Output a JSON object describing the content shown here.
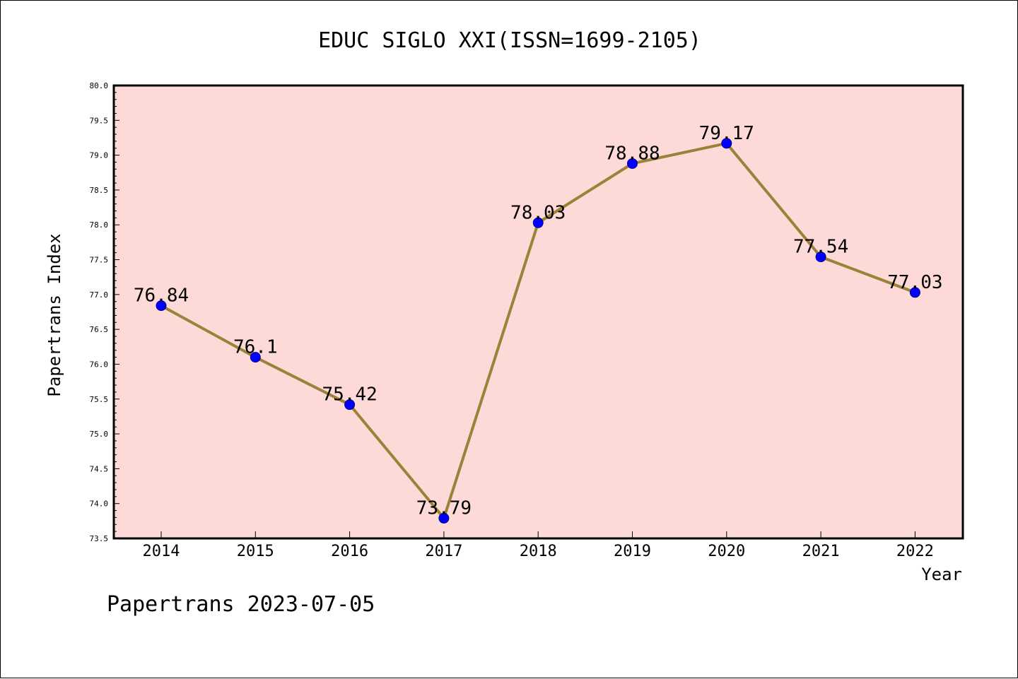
{
  "chart_data": {
    "type": "line",
    "title": "EDUC SIGLO XXI(ISSN=1699-2105)",
    "xlabel": "Year",
    "ylabel": "Papertrans Index",
    "categories": [
      "2014",
      "2015",
      "2016",
      "2017",
      "2018",
      "2019",
      "2020",
      "2021",
      "2022"
    ],
    "series": [
      {
        "values": [
          76.84,
          76.1,
          75.42,
          73.79,
          78.03,
          78.88,
          79.17,
          77.54,
          77.03
        ],
        "labels": [
          "76.84",
          "76.1",
          "75.42",
          "73.79",
          "78.03",
          "78.88",
          "79.17",
          "77.54",
          "77.03"
        ]
      }
    ],
    "ylim": [
      73.5,
      80.0
    ],
    "yticks": [
      "73.5",
      "74.0",
      "74.5",
      "75.0",
      "75.5",
      "76.0",
      "76.5",
      "77.0",
      "77.5",
      "78.0",
      "78.5",
      "79.0",
      "79.5",
      "80.0"
    ],
    "grid": false,
    "colors": {
      "plot_background": "#fddad8",
      "line": "#9b8239",
      "marker": "#0000ff"
    }
  },
  "footer": "Papertrans 2023-07-05"
}
